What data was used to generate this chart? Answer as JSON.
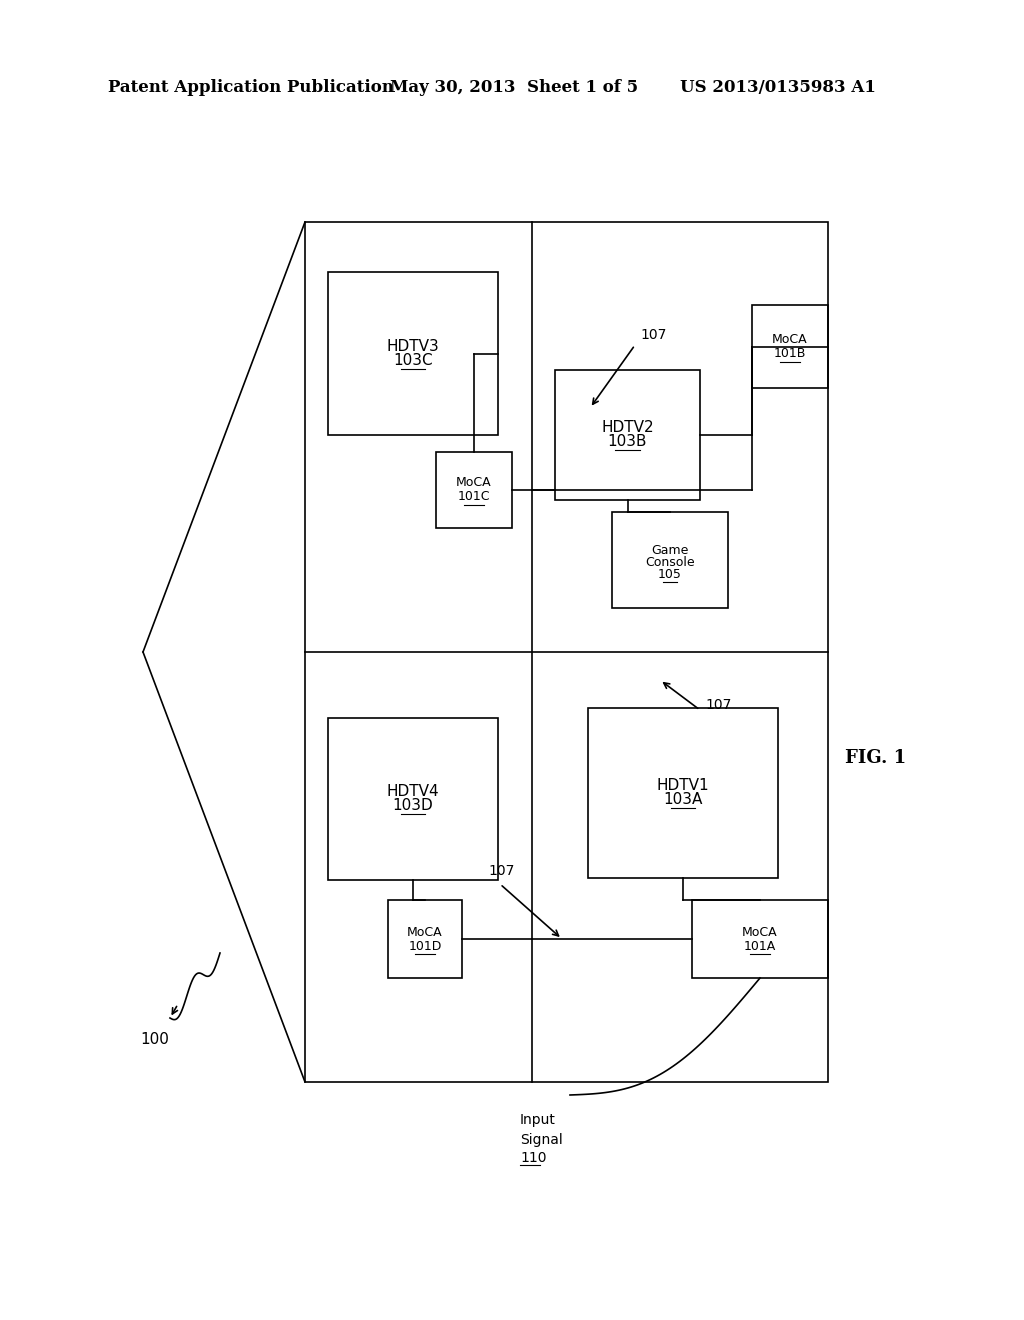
{
  "header_left": "Patent Application Publication",
  "header_mid": "May 30, 2013  Sheet 1 of 5",
  "header_right": "US 2013/0135983 A1",
  "fig_label": "FIG. 1",
  "bg_color": "#ffffff",
  "line_color": "#000000",
  "box_color": "#ffffff",
  "text_color": "#000000",
  "header_fontsize": 12,
  "label_fontsize": 9,
  "fig_label_fontsize": 13,
  "ref_fontsize": 8
}
